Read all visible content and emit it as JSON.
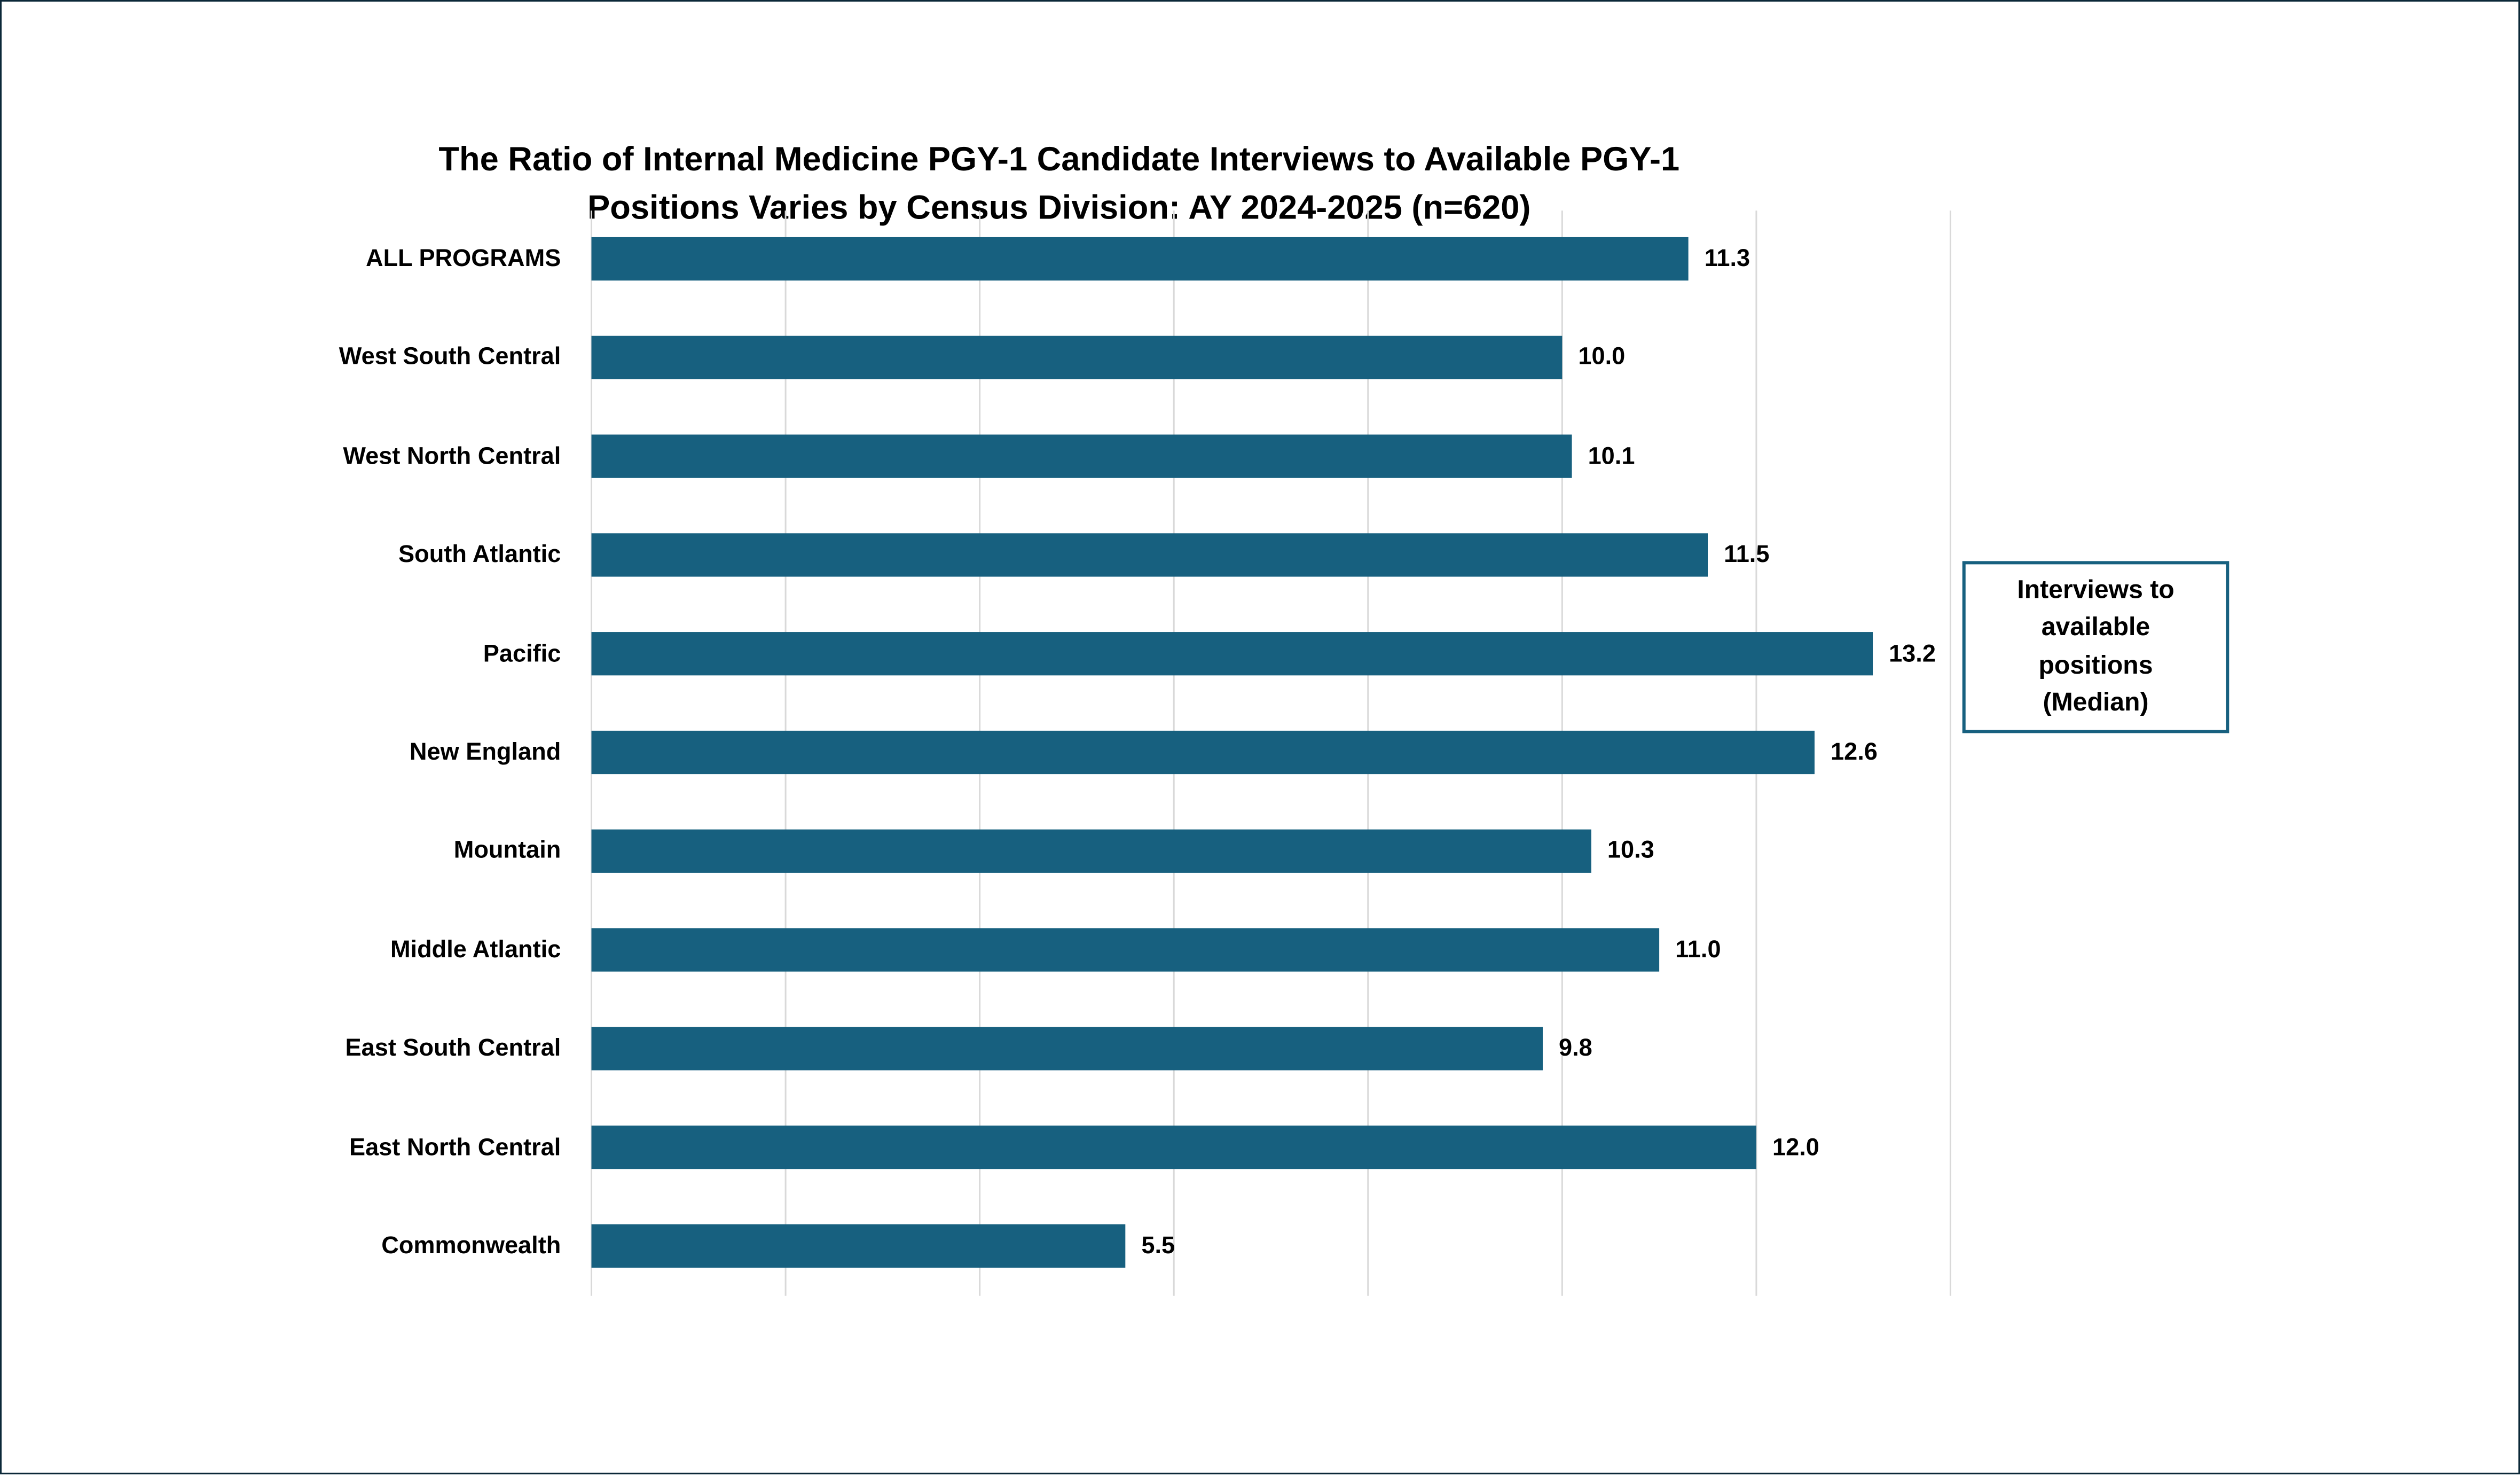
{
  "chart_data": {
    "type": "bar",
    "orientation": "horizontal",
    "title": "The Ratio of Internal Medicine PGY-1 Candidate Interviews to Available PGY-1 Positions Varies by Census Division: AY 2024-2025 (n=620)",
    "title_lines": [
      "The Ratio of Internal Medicine PGY-1 Candidate Interviews to Available PGY-1",
      "Positions Varies by Census Division: AY 2024-2025 (n=620)"
    ],
    "categories": [
      "ALL PROGRAMS",
      "West South Central",
      "West North Central",
      "South Atlantic",
      "Pacific",
      "New England",
      "Mountain",
      "Middle Atlantic",
      "East South Central",
      "East North Central",
      "Commonwealth"
    ],
    "values": [
      11.3,
      10.0,
      10.1,
      11.5,
      13.2,
      12.6,
      10.3,
      11.0,
      9.8,
      12.0,
      5.5
    ],
    "value_labels": [
      "11.3",
      "10.0",
      "10.1",
      "11.5",
      "13.2",
      "12.6",
      "10.3",
      "11.0",
      "9.8",
      "12.0",
      "5.5"
    ],
    "series_name": "Interviews to available positions (Median)",
    "xlabel": "",
    "ylabel": "",
    "xlim": [
      0,
      14
    ],
    "grid_step": 2,
    "grid": true,
    "legend_placement": "right",
    "bar_color": "#17607f",
    "grid_color": "#d9d9d9"
  },
  "legend": {
    "label": "Interviews to available positions (Median)"
  }
}
